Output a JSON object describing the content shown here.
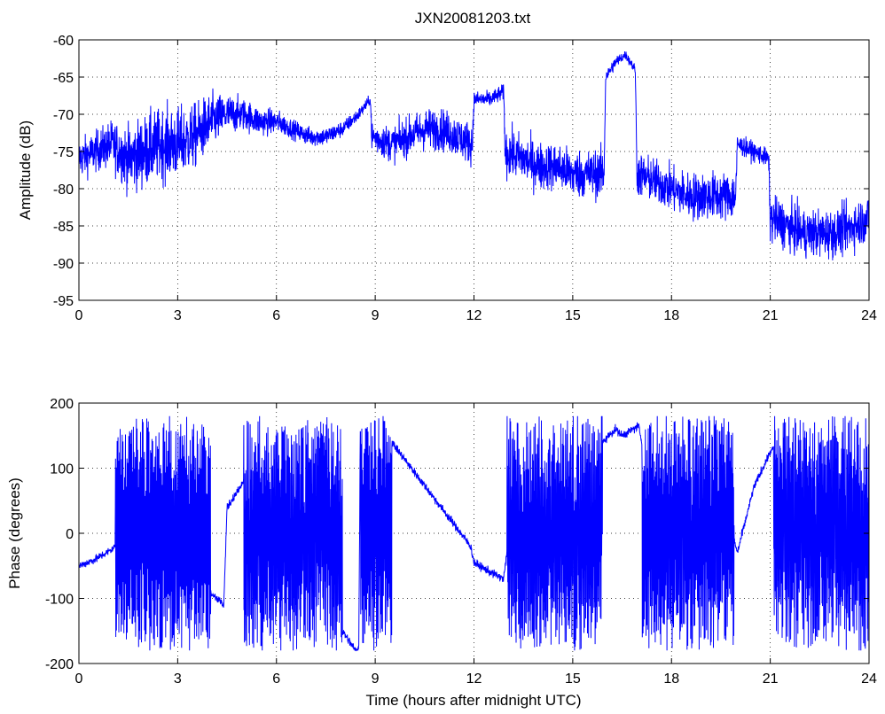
{
  "figure": {
    "title": "JXN20081203.txt",
    "background_color": "#ffffff",
    "line_color": "#0000ff"
  },
  "chart_data": [
    {
      "type": "line",
      "title": "JXN20081203.txt",
      "xlabel": "",
      "ylabel": "Amplitude (dB)",
      "xlim": [
        0,
        24
      ],
      "ylim": [
        -95,
        -60
      ],
      "xticks": [
        0,
        3,
        6,
        9,
        12,
        15,
        18,
        21,
        24
      ],
      "yticks": [
        -95,
        -90,
        -85,
        -80,
        -75,
        -70,
        -65,
        -60
      ],
      "grid": true,
      "series": [
        {
          "color": "#0000ff",
          "x": [
            0,
            0.5,
            1.0,
            1.5,
            2.0,
            2.5,
            3.0,
            3.5,
            4.0,
            4.5,
            5.0,
            5.5,
            6.0,
            6.5,
            7.0,
            7.5,
            8.0,
            8.5,
            8.85,
            8.9,
            9.5,
            10.0,
            10.5,
            11.0,
            11.5,
            11.95,
            12.0,
            12.5,
            12.9,
            12.95,
            13.5,
            14.0,
            14.5,
            15.0,
            15.5,
            15.95,
            16.0,
            16.3,
            16.6,
            16.9,
            16.95,
            17.5,
            18.0,
            18.5,
            19.0,
            19.5,
            19.95,
            20.0,
            20.5,
            20.95,
            21.0,
            21.5,
            22.0,
            22.5,
            23.0,
            23.5,
            24.0
          ],
          "y": [
            -76,
            -75,
            -74,
            -76,
            -75,
            -74,
            -74,
            -73,
            -71,
            -70,
            -70,
            -71,
            -71,
            -72,
            -73,
            -73,
            -72,
            -70,
            -68,
            -73,
            -74,
            -73,
            -72,
            -72,
            -73,
            -74,
            -68,
            -68,
            -67,
            -75,
            -76,
            -77,
            -77,
            -78,
            -78,
            -78,
            -65,
            -63,
            -62,
            -64,
            -78,
            -79,
            -80,
            -81,
            -81,
            -81,
            -81,
            -74,
            -75,
            -76,
            -84,
            -85,
            -86,
            -86,
            -86,
            -85,
            -84
          ],
          "noise": [
            2.5,
            2.5,
            3,
            4,
            4.5,
            4.5,
            4.5,
            4,
            3.5,
            2.5,
            2,
            1.8,
            1.5,
            1.2,
            1.2,
            1.2,
            1,
            0.8,
            0.6,
            2,
            2.2,
            2.4,
            2.6,
            2.6,
            2.6,
            2.6,
            1,
            1,
            1,
            3,
            3,
            3,
            3,
            3,
            3,
            3,
            0.8,
            0.8,
            0.6,
            0.6,
            2.8,
            2.8,
            2.8,
            3,
            3,
            3,
            3,
            1.2,
            1.2,
            1.2,
            3,
            3,
            3,
            3,
            3,
            3,
            3
          ]
        }
      ]
    },
    {
      "type": "line",
      "title": "",
      "xlabel": "Time (hours after midnight UTC)",
      "ylabel": "Phase (degrees)",
      "xlim": [
        0,
        24
      ],
      "ylim": [
        -200,
        200
      ],
      "xticks": [
        0,
        3,
        6,
        9,
        12,
        15,
        18,
        21,
        24
      ],
      "yticks": [
        -200,
        -100,
        0,
        100,
        200
      ],
      "grid": true,
      "wrap": [
        -180,
        180
      ],
      "series": [
        {
          "color": "#0000ff",
          "x": [
            0,
            0.5,
            1.0,
            1.1,
            4.0,
            4.4,
            4.5,
            4.9,
            5.0,
            8.0,
            8.4,
            8.5,
            8.55,
            9.5,
            11.9,
            12.0,
            12.5,
            12.9,
            13.0,
            15.9,
            16.3,
            16.5,
            17.0,
            17.1,
            19.9,
            20.0,
            20.5,
            21.0,
            21.1,
            24.0
          ],
          "y": [
            -50,
            -40,
            -25,
            -20,
            -90,
            -110,
            40,
            70,
            80,
            -150,
            -180,
            -175,
            178,
            140,
            -20,
            -45,
            -60,
            -70,
            -30,
            140,
            160,
            150,
            165,
            140,
            -10,
            -30,
            70,
            125,
            130,
            100
          ],
          "drift_rate": [
            0,
            0,
            0,
            260,
            0,
            0,
            0,
            0,
            320,
            0,
            0,
            0,
            280,
            0,
            0,
            0,
            0,
            0,
            330,
            0,
            0,
            0,
            0,
            300,
            0,
            0,
            0,
            0,
            360,
            0
          ]
        }
      ]
    }
  ]
}
